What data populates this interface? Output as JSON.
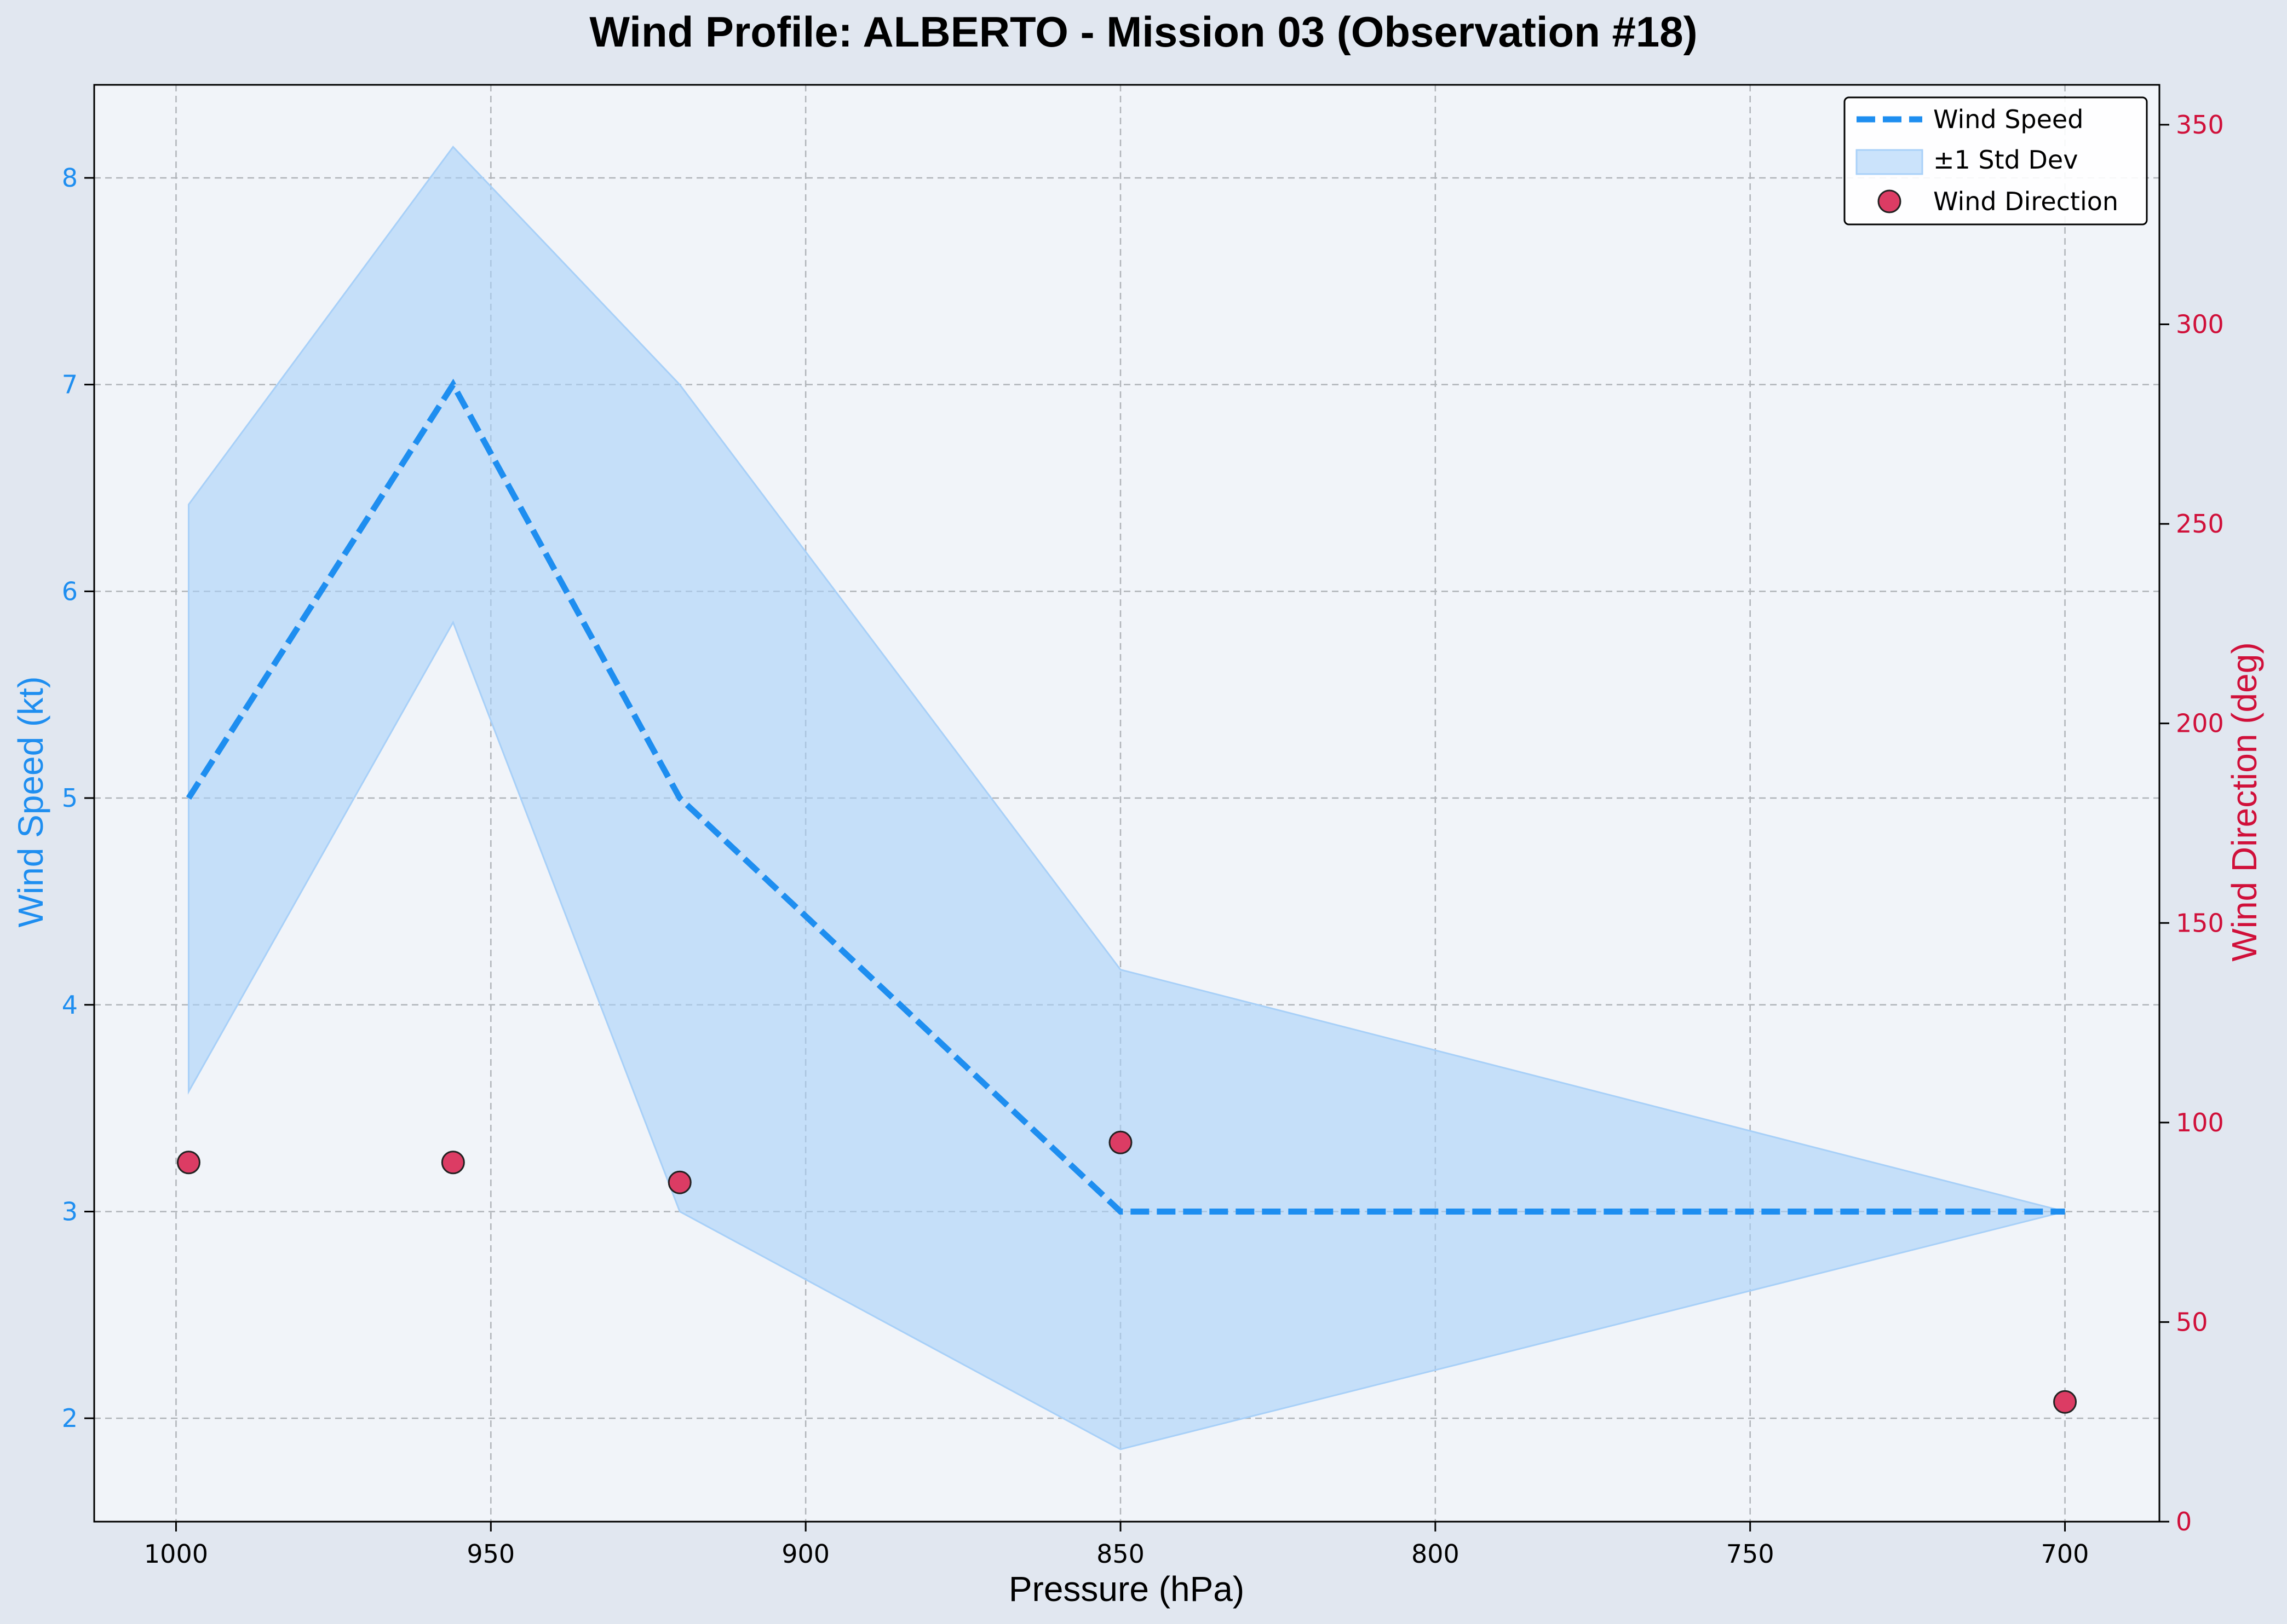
{
  "chart_data": {
    "type": "line",
    "title": "Wind Profile: ALBERTO - Mission 03 (Observation #18)",
    "xlabel": "Pressure (hPa)",
    "ylabel": "Wind Speed (kt)",
    "y2label": "Wind Direction (deg)",
    "x_axis_inverted": true,
    "xlim": [
      1013,
      685
    ],
    "ylim": [
      1.5,
      8.45
    ],
    "y2lim": [
      0,
      360
    ],
    "x_ticks": [
      "1000",
      "950",
      "900",
      "850",
      "800",
      "750",
      "700"
    ],
    "y_ticks": [
      "2",
      "3",
      "4",
      "5",
      "6",
      "7",
      "8"
    ],
    "y2_ticks": [
      "0",
      "50",
      "100",
      "150",
      "200",
      "250",
      "300",
      "350"
    ],
    "grid": true,
    "legend_position": "top-right",
    "colors": {
      "wind_speed": "#1e8ef0",
      "std_band": "#a8d0f8",
      "wind_direction": "#dc3c64",
      "right_axis": "#d0103a",
      "left_axis": "#1e8ef0"
    },
    "series": [
      {
        "name": "Wind Speed",
        "style": "dashed-line",
        "x": [
          998,
          956,
          920,
          850,
          700
        ],
        "y": [
          5,
          7,
          5,
          3,
          3
        ]
      },
      {
        "name": "±1 Std Dev",
        "style": "band",
        "x": [
          998,
          956,
          920,
          850,
          700
        ],
        "lower": [
          3.58,
          5.85,
          3.0,
          1.85,
          3.0
        ],
        "upper": [
          6.42,
          8.15,
          7.0,
          4.17,
          3.0
        ]
      },
      {
        "name": "Wind Direction",
        "style": "scatter",
        "axis": "right",
        "x": [
          998,
          956,
          920,
          850,
          700
        ],
        "y": [
          90,
          90,
          85,
          95,
          30
        ]
      }
    ]
  }
}
